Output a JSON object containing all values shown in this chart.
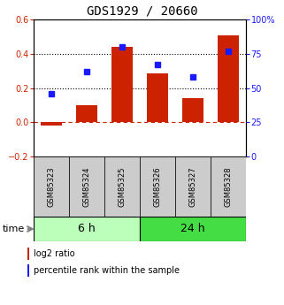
{
  "title": "GDS1929 / 20660",
  "samples": [
    "GSM85323",
    "GSM85324",
    "GSM85325",
    "GSM85326",
    "GSM85327",
    "GSM85328"
  ],
  "log2_ratio": [
    -0.02,
    0.1,
    0.44,
    0.285,
    0.14,
    0.505
  ],
  "percentile_rank": [
    46,
    62,
    80,
    67,
    58,
    77
  ],
  "bar_color": "#cc2200",
  "dot_color": "#1a1aff",
  "left_ylim": [
    -0.2,
    0.6
  ],
  "right_ylim": [
    0,
    100
  ],
  "left_yticks": [
    -0.2,
    0.0,
    0.2,
    0.4,
    0.6
  ],
  "right_yticks": [
    0,
    25,
    50,
    75,
    100
  ],
  "groups": [
    {
      "label": "6 h",
      "samples": [
        0,
        1,
        2
      ],
      "color": "#bbffbb"
    },
    {
      "label": "24 h",
      "samples": [
        3,
        4,
        5
      ],
      "color": "#44dd44"
    }
  ],
  "time_label": "time",
  "legend_bar_label": "log2 ratio",
  "legend_dot_label": "percentile rank within the sample",
  "dotted_line_color": "black",
  "zero_line_color": "#cc2200",
  "bg_plot": "#ffffff",
  "bg_sample_box": "#cccccc",
  "title_fontsize": 10,
  "tick_fontsize": 7,
  "sample_fontsize": 6,
  "group_label_fontsize": 9,
  "legend_fontsize": 7
}
